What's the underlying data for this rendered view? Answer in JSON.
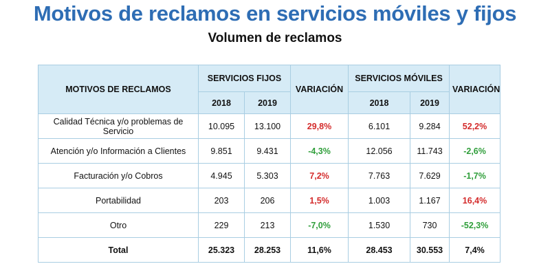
{
  "title": "Motivos de reclamos en servicios móviles y fijos",
  "subtitle": "Volumen de reclamos",
  "colors": {
    "title": "#2e6db4",
    "header_bg": "#d6ebf6",
    "border": "#a8cde2",
    "increase": "#d42b2b",
    "decrease": "#2f9e3a"
  },
  "table": {
    "header": {
      "reason": "MOTIVOS DE RECLAMOS",
      "fixed_group": "SERVICIOS FIJOS",
      "variation_fixed": "VARIACIÓN",
      "mobile_group": "SERVICIOS MÓVILES",
      "variation_mobile": "VARIACIÓN",
      "fixed_2018": "2018",
      "fixed_2019": "2019",
      "mobile_2018": "2018",
      "mobile_2019": "2019"
    },
    "rows": [
      {
        "reason": "Calidad Técnica y/o problemas de Servicio",
        "fixed_2018": "10.095",
        "fixed_2019": "13.100",
        "fixed_var": "29,8%",
        "fixed_var_trend": "up",
        "mobile_2018": "6.101",
        "mobile_2019": "9.284",
        "mobile_var": "52,2%",
        "mobile_var_trend": "up"
      },
      {
        "reason": "Atención y/o Información a Clientes",
        "fixed_2018": "9.851",
        "fixed_2019": "9.431",
        "fixed_var": "-4,3%",
        "fixed_var_trend": "down",
        "mobile_2018": "12.056",
        "mobile_2019": "11.743",
        "mobile_var": "-2,6%",
        "mobile_var_trend": "down"
      },
      {
        "reason": "Facturación y/o Cobros",
        "fixed_2018": "4.945",
        "fixed_2019": "5.303",
        "fixed_var": "7,2%",
        "fixed_var_trend": "up",
        "mobile_2018": "7.763",
        "mobile_2019": "7.629",
        "mobile_var": "-1,7%",
        "mobile_var_trend": "down"
      },
      {
        "reason": "Portabilidad",
        "fixed_2018": "203",
        "fixed_2019": "206",
        "fixed_var": "1,5%",
        "fixed_var_trend": "up",
        "mobile_2018": "1.003",
        "mobile_2019": "1.167",
        "mobile_var": "16,4%",
        "mobile_var_trend": "up"
      },
      {
        "reason": "Otro",
        "fixed_2018": "229",
        "fixed_2019": "213",
        "fixed_var": "-7,0%",
        "fixed_var_trend": "down",
        "mobile_2018": "1.530",
        "mobile_2019": "730",
        "mobile_var": "-52,3%",
        "mobile_var_trend": "down"
      },
      {
        "reason": "Total",
        "fixed_2018": "25.323",
        "fixed_2019": "28.253",
        "fixed_var": "11,6%",
        "fixed_var_trend": "plain",
        "mobile_2018": "28.453",
        "mobile_2019": "30.553",
        "mobile_var": "7,4%",
        "mobile_var_trend": "plain"
      }
    ]
  }
}
